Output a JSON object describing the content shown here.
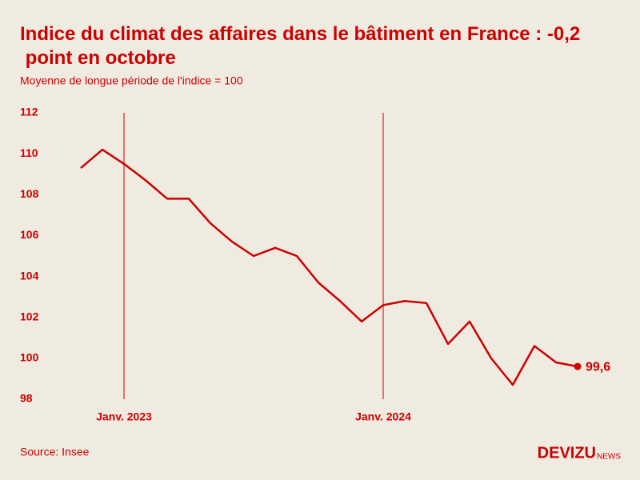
{
  "chart_data": {
    "type": "line",
    "title": "Indice du climat des affaires dans le bâtiment en France : -0,2 point en octobre",
    "subtitle": "Moyenne de longue période de l'indice = 100",
    "categories": [
      null,
      null,
      "Janv. 2023",
      null,
      null,
      null,
      null,
      null,
      null,
      null,
      null,
      null,
      null,
      null,
      "Janv. 2024",
      null,
      null,
      null,
      null,
      null,
      null,
      null,
      null,
      null
    ],
    "series": [
      {
        "name": "Indice",
        "color": "#cc0000",
        "values": [
          109.3,
          110.2,
          109.5,
          108.7,
          107.8,
          107.8,
          106.6,
          105.7,
          105.0,
          105.4,
          105.0,
          103.7,
          102.8,
          101.8,
          102.6,
          102.8,
          102.7,
          100.7,
          101.8,
          100.0,
          98.7,
          100.6,
          99.8,
          99.6
        ],
        "value_labels": [
          null,
          null,
          null,
          null,
          null,
          null,
          null,
          null,
          null,
          null,
          null,
          null,
          null,
          null,
          null,
          null,
          null,
          null,
          null,
          null,
          null,
          null,
          null,
          "99,6"
        ]
      }
    ],
    "ylim": [
      98,
      112
    ],
    "yticks": [
      98,
      100,
      102,
      104,
      106,
      108,
      110,
      112
    ],
    "grid": false,
    "source": "Source: Insee",
    "brand": "DEVIZU",
    "brand_suffix": "NEWS"
  }
}
